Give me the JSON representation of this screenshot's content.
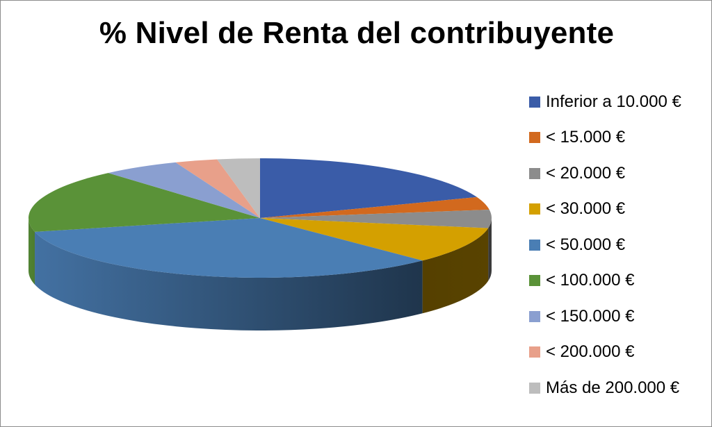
{
  "chart_data": {
    "type": "pie",
    "title": "% Nivel de Renta del contribuyente",
    "legend_position": "right",
    "three_d": true,
    "categories": [
      "Inferior a 10.000 €",
      "< 15.000 €",
      "< 20.000 €",
      "< 30.000 €",
      "< 50.000 €",
      "< 100.000 €",
      "< 150.000 €",
      "< 200.000 €",
      "Más de 200.000 €"
    ],
    "values": [
      19.5,
      3.5,
      5.0,
      10.0,
      34.0,
      17.5,
      5.5,
      3.0,
      3.0
    ],
    "colors": [
      "#3A5CA8",
      "#D2691E",
      "#8C8C8C",
      "#D4A000",
      "#4A7EB4",
      "#5A9238",
      "#8A9FD0",
      "#E8A08A",
      "#BDBDBD"
    ]
  }
}
